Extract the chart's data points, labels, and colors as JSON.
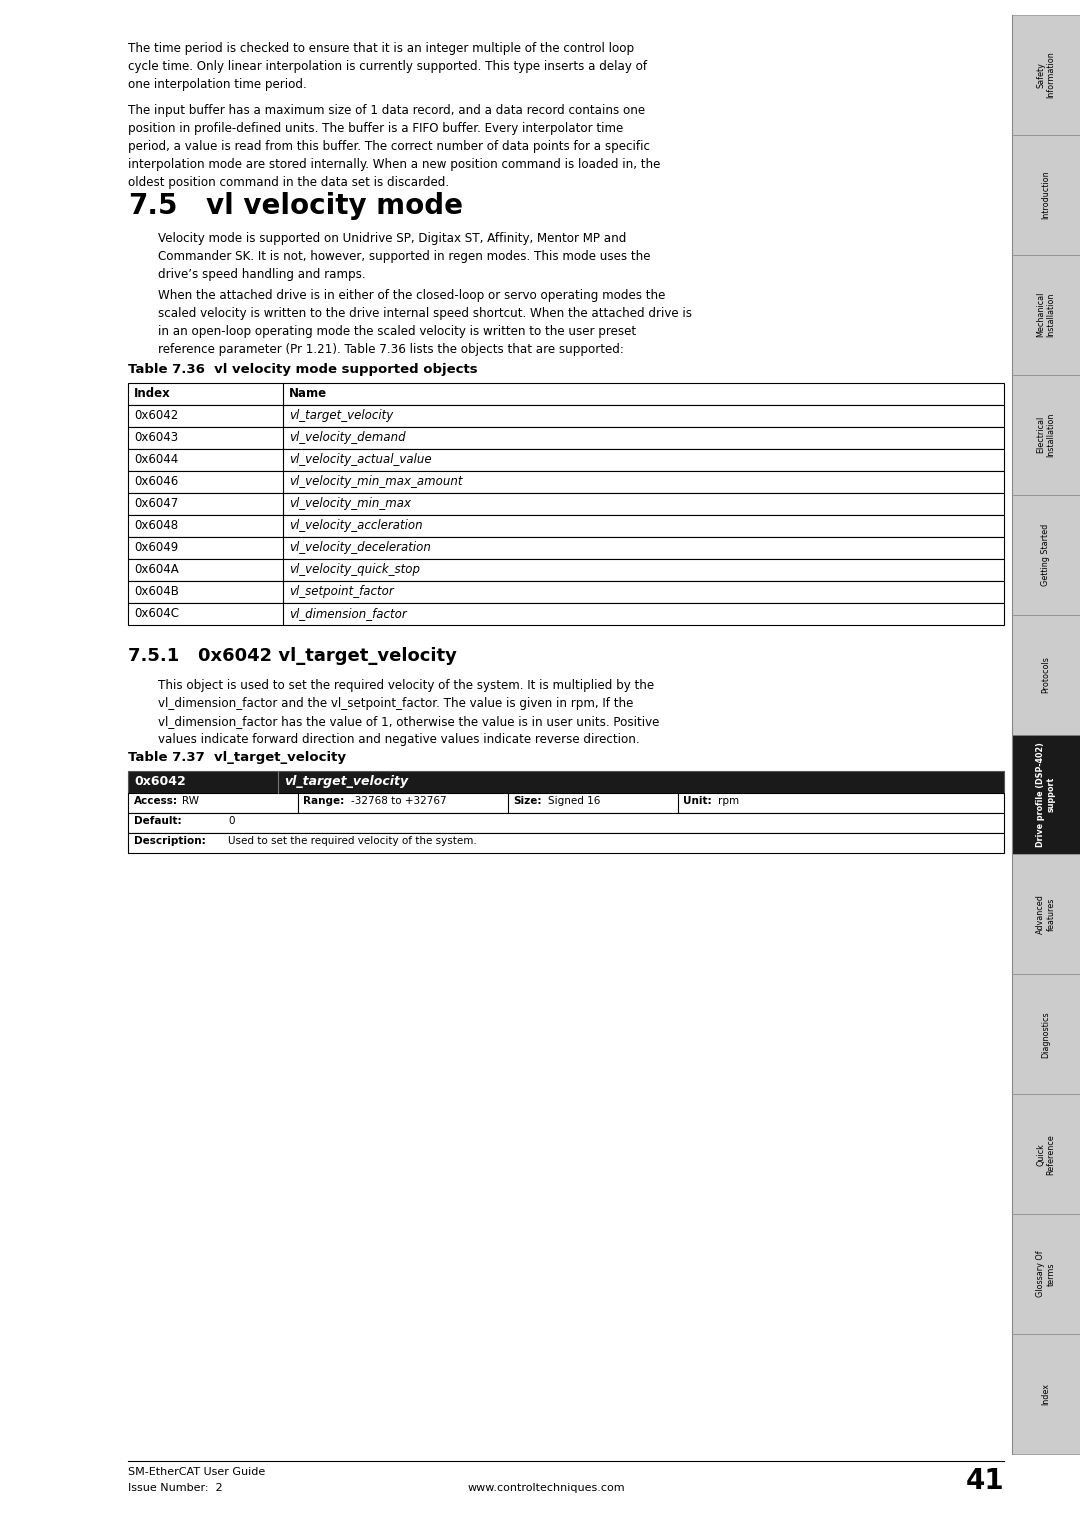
{
  "page_bg": "#ffffff",
  "fig_w": 10.8,
  "fig_h": 15.29,
  "dpi": 100,
  "sidebar_items": [
    {
      "label": "Safety\nInformation",
      "highlight": false
    },
    {
      "label": "Introduction",
      "highlight": false
    },
    {
      "label": "Mechanical\nInstallation",
      "highlight": false
    },
    {
      "label": "Electrical\nInstallation",
      "highlight": false
    },
    {
      "label": "Getting Started",
      "highlight": false
    },
    {
      "label": "Protocols",
      "highlight": false
    },
    {
      "label": "Drive profile (DSP-402)\nsupport",
      "highlight": true
    },
    {
      "label": "Advanced\nfeatures",
      "highlight": false
    },
    {
      "label": "Diagnostics",
      "highlight": false
    },
    {
      "label": "Quick\nReference",
      "highlight": false
    },
    {
      "label": "Glossary Of\nterms",
      "highlight": false
    },
    {
      "label": "Index",
      "highlight": false
    }
  ],
  "top_para1": "The time period is checked to ensure that it is an integer multiple of the control loop\ncycle time. Only linear interpolation is currently supported. This type inserts a delay of\none interpolation time period.",
  "top_para2": "The input buffer has a maximum size of 1 data record, and a data record contains one\nposition in profile-defined units. The buffer is a FIFO buffer. Every interpolator time\nperiod, a value is read from this buffer. The correct number of data points for a specific\ninterpolation mode are stored internally. When a new position command is loaded in, the\noldest position command in the data set is discarded.",
  "section_75_num": "7.5",
  "section_75_title": "vl velocity mode",
  "section_75_para1": "Velocity mode is supported on Unidrive SP, Digitax ST, Affinity, Mentor MP and\nCommander SK. It is not, however, supported in regen modes. This mode uses the\ndrive’s speed handling and ramps.",
  "section_75_para2": "When the attached drive is in either of the closed-loop or servo operating modes the\nscaled velocity is written to the drive internal speed shortcut. When the attached drive is\nin an open-loop operating mode the scaled velocity is written to the user preset\nreference parameter (Pr 1.21). Table 7.36 lists the objects that are supported:",
  "table_736_title": "Table 7.36  vl velocity mode supported objects",
  "table_736_headers": [
    "Index",
    "Name"
  ],
  "table_736_rows": [
    [
      "0x6042",
      "vl_target_velocity"
    ],
    [
      "0x6043",
      "vl_velocity_demand"
    ],
    [
      "0x6044",
      "vl_velocity_actual_value"
    ],
    [
      "0x6046",
      "vl_velocity_min_max_amount"
    ],
    [
      "0x6047",
      "vl_velocity_min_max"
    ],
    [
      "0x6048",
      "vl_velocity_accleration"
    ],
    [
      "0x6049",
      "vl_velocity_deceleration"
    ],
    [
      "0x604A",
      "vl_velocity_quick_stop"
    ],
    [
      "0x604B",
      "vl_setpoint_factor"
    ],
    [
      "0x604C",
      "vl_dimension_factor"
    ]
  ],
  "section_751_num": "7.5.1",
  "section_751_title": "0x6042 vl_target_velocity",
  "section_751_para": "This object is used to set the required velocity of the system. It is multiplied by the\nvl_dimension_factor and the vl_setpoint_factor. The value is given in rpm, If the\nvl_dimension_factor has the value of 1, otherwise the value is in user units. Positive\nvalues indicate forward direction and negative values indicate reverse direction.",
  "table_737_title": "Table 7.37  vl_target_velocity",
  "table_737_header_col1": "0x6042",
  "table_737_header_col2": "vl_target_velocity",
  "table_737_row1_label": "Access:",
  "table_737_row1_access": "RW",
  "table_737_row1_range_label": "Range:",
  "table_737_row1_range": "-32768 to +32767",
  "table_737_row1_size_label": "Size:",
  "table_737_row1_size": "Signed 16",
  "table_737_row1_unit_label": "Unit:",
  "table_737_row1_unit": "rpm",
  "table_737_row2_label": "Default:",
  "table_737_row2_value": "0",
  "table_737_row3_label": "Description:",
  "table_737_row3_value": "Used to set the required velocity of the system.",
  "footer_left1": "SM-EtherCAT User Guide",
  "footer_left2": "Issue Number:  2",
  "footer_center": "www.controltechniques.com",
  "footer_page": "41"
}
